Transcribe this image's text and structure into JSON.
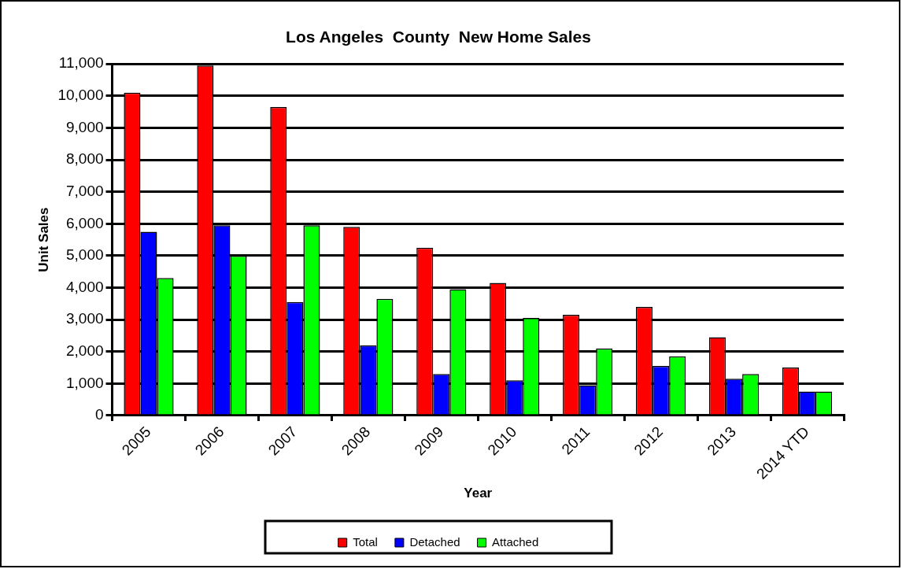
{
  "chart_data": {
    "type": "bar",
    "title": "Los Angeles  County  New Home Sales",
    "xlabel": "Year",
    "ylabel": "Unit Sales",
    "categories": [
      "2005",
      "2006",
      "2007",
      "2008",
      "2009",
      "2010",
      "2011",
      "2012",
      "2013",
      "2014 YTD"
    ],
    "series": [
      {
        "name": "Total",
        "color": "#ff0000",
        "values": [
          10100,
          10950,
          9650,
          5900,
          5250,
          4150,
          3150,
          3400,
          2450,
          1500
        ]
      },
      {
        "name": "Detached",
        "color": "#0000ff",
        "values": [
          5750,
          5950,
          3550,
          2200,
          1300,
          1100,
          950,
          1550,
          1150,
          750
        ]
      },
      {
        "name": "Attached",
        "color": "#00ff00",
        "values": [
          4300,
          5000,
          5950,
          3650,
          3950,
          3050,
          2100,
          1850,
          1300,
          750
        ]
      }
    ],
    "ylim": [
      0,
      11000
    ],
    "yticks": [
      0,
      {
        "value": 1000,
        "label": "1,000"
      },
      {
        "value": 2000,
        "label": "2,000"
      },
      {
        "value": 3000,
        "label": "3,000"
      },
      {
        "value": 4000,
        "label": "4,000"
      },
      {
        "value": 5000,
        "label": "5,000"
      },
      {
        "value": 6000,
        "label": "6,000"
      },
      {
        "value": 7000,
        "label": "7,000"
      },
      {
        "value": 8000,
        "label": "8,000"
      },
      {
        "value": 9000,
        "label": "9,000"
      },
      {
        "value": 10000,
        "label": "10,000"
      },
      {
        "value": 11000,
        "label": "11,000"
      }
    ],
    "grid": "y",
    "legend": "bottom"
  }
}
